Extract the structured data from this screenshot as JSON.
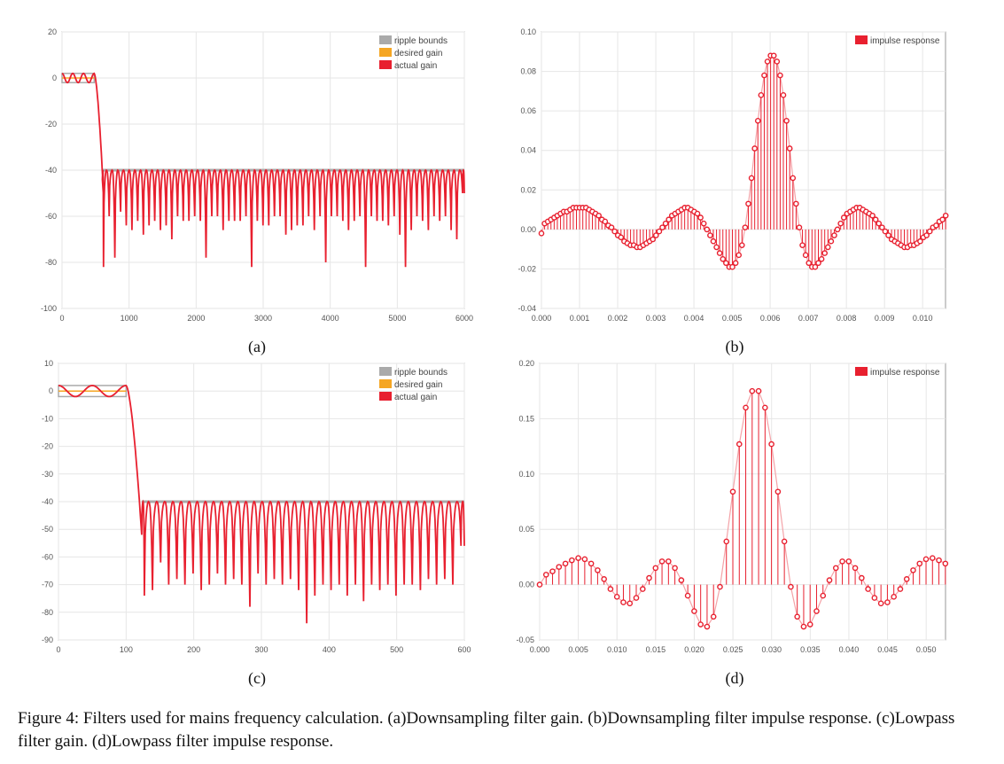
{
  "caption": "Figure 4: Filters used for mains frequency calculation. (a)Downsampling filter gain. (b)Downsampling filter impulse response. (c)Lowpass filter gain. (d)Lowpass filter impulse response.",
  "colors": {
    "ripple": "#aaaaaa",
    "desired": "#f5a623",
    "actual": "#e8202f",
    "grid": "#e6e6e6",
    "axis": "#999999",
    "stemLine": "#f4a3a8"
  },
  "chart_data": [
    {
      "id": "a",
      "sublabel": "(a)",
      "type": "line",
      "xlim": [
        0,
        6000
      ],
      "ylim": [
        -100,
        20
      ],
      "xticks": [
        0,
        1000,
        2000,
        3000,
        4000,
        5000,
        6000
      ],
      "yticks": [
        -100,
        -80,
        -60,
        -40,
        -20,
        0,
        20
      ],
      "grid": true,
      "legend_position": "top-right",
      "legend": [
        "ripple bounds",
        "desired gain",
        "actual gain"
      ],
      "passband": {
        "x": [
          0,
          480
        ],
        "ripple": [
          -2,
          2
        ],
        "desired": 0,
        "ripple_count": 3
      },
      "stopband": {
        "x": [
          600,
          6000
        ],
        "bound": -40
      },
      "transition_end_x": 620,
      "lobe_starts": [
        600,
        618,
        703,
        788,
        873,
        958,
        1043,
        1128,
        1213,
        1298,
        1383,
        1468,
        1553,
        1638,
        1723,
        1808,
        1893,
        1978,
        2063,
        2148,
        2233,
        2318,
        2403,
        2488,
        2573,
        2658,
        2743,
        2828,
        2913,
        2998,
        3083,
        3168,
        3253,
        3338,
        3423,
        3508,
        3593,
        3678,
        3763,
        3848,
        3933,
        4018,
        4103,
        4188,
        4273,
        4358,
        4443,
        4528,
        4613,
        4698,
        4783,
        4868,
        4953,
        5038,
        5123,
        5208,
        5293,
        5378,
        5463,
        5548,
        5633,
        5718,
        5803,
        5888,
        5973,
        6000
      ],
      "null_depths": [
        -52,
        -82,
        -60,
        -78,
        -58,
        -64,
        -66,
        -62,
        -68,
        -64,
        -62,
        -66,
        -64,
        -70,
        -60,
        -62,
        -62,
        -60,
        -62,
        -78,
        -60,
        -60,
        -66,
        -62,
        -62,
        -62,
        -60,
        -82,
        -62,
        -64,
        -64,
        -60,
        -60,
        -68,
        -66,
        -64,
        -64,
        -60,
        -66,
        -60,
        -80,
        -60,
        -60,
        -62,
        -66,
        -62,
        -60,
        -82,
        -60,
        -62,
        -62,
        -64,
        -60,
        -68,
        -82,
        -66,
        -60,
        -62,
        -66,
        -60,
        -62,
        -60,
        -66,
        -70,
        -50
      ]
    },
    {
      "id": "b",
      "sublabel": "(b)",
      "type": "stem",
      "xlim": [
        0,
        0.0106
      ],
      "ylim": [
        -0.04,
        0.1
      ],
      "xticks": [
        "0.000",
        "0.001",
        "0.002",
        "0.003",
        "0.004",
        "0.005",
        "0.006",
        "0.007",
        "0.008",
        "0.009",
        "0.010"
      ],
      "yticks": [
        "-0.04",
        "-0.02",
        "0.00",
        "0.02",
        "0.04",
        "0.06",
        "0.08",
        "0.10"
      ],
      "grid": true,
      "legend_position": "top-right",
      "legend": [
        "impulse response"
      ],
      "n_samples": 128,
      "x_step": 8.35e-05,
      "values": [
        -0.002,
        0.003,
        0.004,
        0.005,
        0.006,
        0.007,
        0.008,
        0.009,
        0.009,
        0.01,
        0.011,
        0.011,
        0.011,
        0.011,
        0.011,
        0.01,
        0.009,
        0.008,
        0.007,
        0.005,
        0.004,
        0.002,
        0.001,
        -0.001,
        -0.003,
        -0.004,
        -0.006,
        -0.007,
        -0.008,
        -0.008,
        -0.009,
        -0.009,
        -0.008,
        -0.007,
        -0.006,
        -0.005,
        -0.003,
        -0.001,
        0.001,
        0.003,
        0.005,
        0.007,
        0.008,
        0.009,
        0.01,
        0.011,
        0.011,
        0.01,
        0.009,
        0.008,
        0.006,
        0.003,
        0.0,
        -0.003,
        -0.006,
        -0.009,
        -0.012,
        -0.015,
        -0.017,
        -0.019,
        -0.019,
        -0.017,
        -0.013,
        -0.008,
        0.001,
        0.013,
        0.026,
        0.041,
        0.055,
        0.068,
        0.078,
        0.085,
        0.088,
        0.088,
        0.085,
        0.078,
        0.068,
        0.055,
        0.041,
        0.026,
        0.013,
        0.001,
        -0.008,
        -0.013,
        -0.017,
        -0.019,
        -0.019,
        -0.017,
        -0.015,
        -0.012,
        -0.009,
        -0.006,
        -0.003,
        0.0,
        0.003,
        0.006,
        0.008,
        0.009,
        0.01,
        0.011,
        0.011,
        0.01,
        0.009,
        0.008,
        0.007,
        0.005,
        0.003,
        0.001,
        -0.001,
        -0.003,
        -0.005,
        -0.006,
        -0.007,
        -0.008,
        -0.009,
        -0.009,
        -0.008,
        -0.008,
        -0.007,
        -0.006,
        -0.004,
        -0.003,
        -0.001,
        0.001,
        0.002,
        0.004,
        0.005,
        0.007
      ]
    },
    {
      "id": "c",
      "sublabel": "(c)",
      "type": "line",
      "xlim": [
        0,
        600
      ],
      "ylim": [
        -90,
        10
      ],
      "xticks": [
        0,
        100,
        200,
        300,
        400,
        500,
        600
      ],
      "yticks": [
        -90,
        -80,
        -70,
        -60,
        -50,
        -40,
        -30,
        -20,
        -10,
        0,
        10
      ],
      "grid": true,
      "legend_position": "top-right",
      "legend": [
        "ripple bounds",
        "desired gain",
        "actual gain"
      ],
      "passband": {
        "x": [
          0,
          100
        ],
        "ripple": [
          -2,
          2
        ],
        "desired": 0,
        "ripple_count": 2
      },
      "stopband": {
        "x": [
          123,
          600
        ],
        "bound": -40
      },
      "transition_end_x": 123,
      "lobe_starts": [
        123,
        127,
        139,
        151,
        163,
        175,
        187,
        199,
        211,
        223,
        235,
        247,
        259,
        271,
        283,
        295,
        307,
        319,
        331,
        343,
        355,
        367,
        379,
        391,
        403,
        415,
        427,
        439,
        451,
        463,
        475,
        487,
        499,
        511,
        523,
        535,
        547,
        559,
        571,
        583,
        595,
        600
      ],
      "null_depths": [
        -52,
        -74,
        -72,
        -62,
        -70,
        -68,
        -70,
        -66,
        -72,
        -70,
        -66,
        -70,
        -68,
        -70,
        -78,
        -66,
        -70,
        -68,
        -70,
        -68,
        -72,
        -84,
        -74,
        -70,
        -72,
        -70,
        -74,
        -70,
        -76,
        -70,
        -72,
        -70,
        -74,
        -70,
        -70,
        -72,
        -68,
        -70,
        -68,
        -70,
        -56
      ]
    },
    {
      "id": "d",
      "sublabel": "(d)",
      "type": "stem",
      "xlim": [
        0,
        0.0525
      ],
      "ylim": [
        -0.05,
        0.2
      ],
      "xticks": [
        "0.000",
        "0.005",
        "0.010",
        "0.015",
        "0.020",
        "0.025",
        "0.030",
        "0.035",
        "0.040",
        "0.045",
        "0.050"
      ],
      "yticks": [
        "-0.05",
        "0.00",
        "0.05",
        "0.10",
        "0.15",
        "0.20"
      ],
      "grid": true,
      "legend_position": "top-right",
      "legend": [
        "impulse response"
      ],
      "n_samples": 64,
      "x_step": 0.000833,
      "values": [
        0.0,
        0.009,
        0.012,
        0.016,
        0.019,
        0.022,
        0.024,
        0.023,
        0.019,
        0.013,
        0.005,
        -0.004,
        -0.011,
        -0.016,
        -0.017,
        -0.012,
        -0.004,
        0.006,
        0.015,
        0.021,
        0.021,
        0.015,
        0.004,
        -0.01,
        -0.024,
        -0.036,
        -0.038,
        -0.029,
        -0.002,
        0.039,
        0.084,
        0.127,
        0.16,
        0.175,
        0.175,
        0.16,
        0.127,
        0.084,
        0.039,
        -0.002,
        -0.029,
        -0.038,
        -0.036,
        -0.024,
        -0.01,
        0.004,
        0.015,
        0.021,
        0.021,
        0.015,
        0.006,
        -0.004,
        -0.012,
        -0.017,
        -0.016,
        -0.011,
        -0.004,
        0.005,
        0.013,
        0.019,
        0.023,
        0.024,
        0.022,
        0.019
      ]
    }
  ]
}
